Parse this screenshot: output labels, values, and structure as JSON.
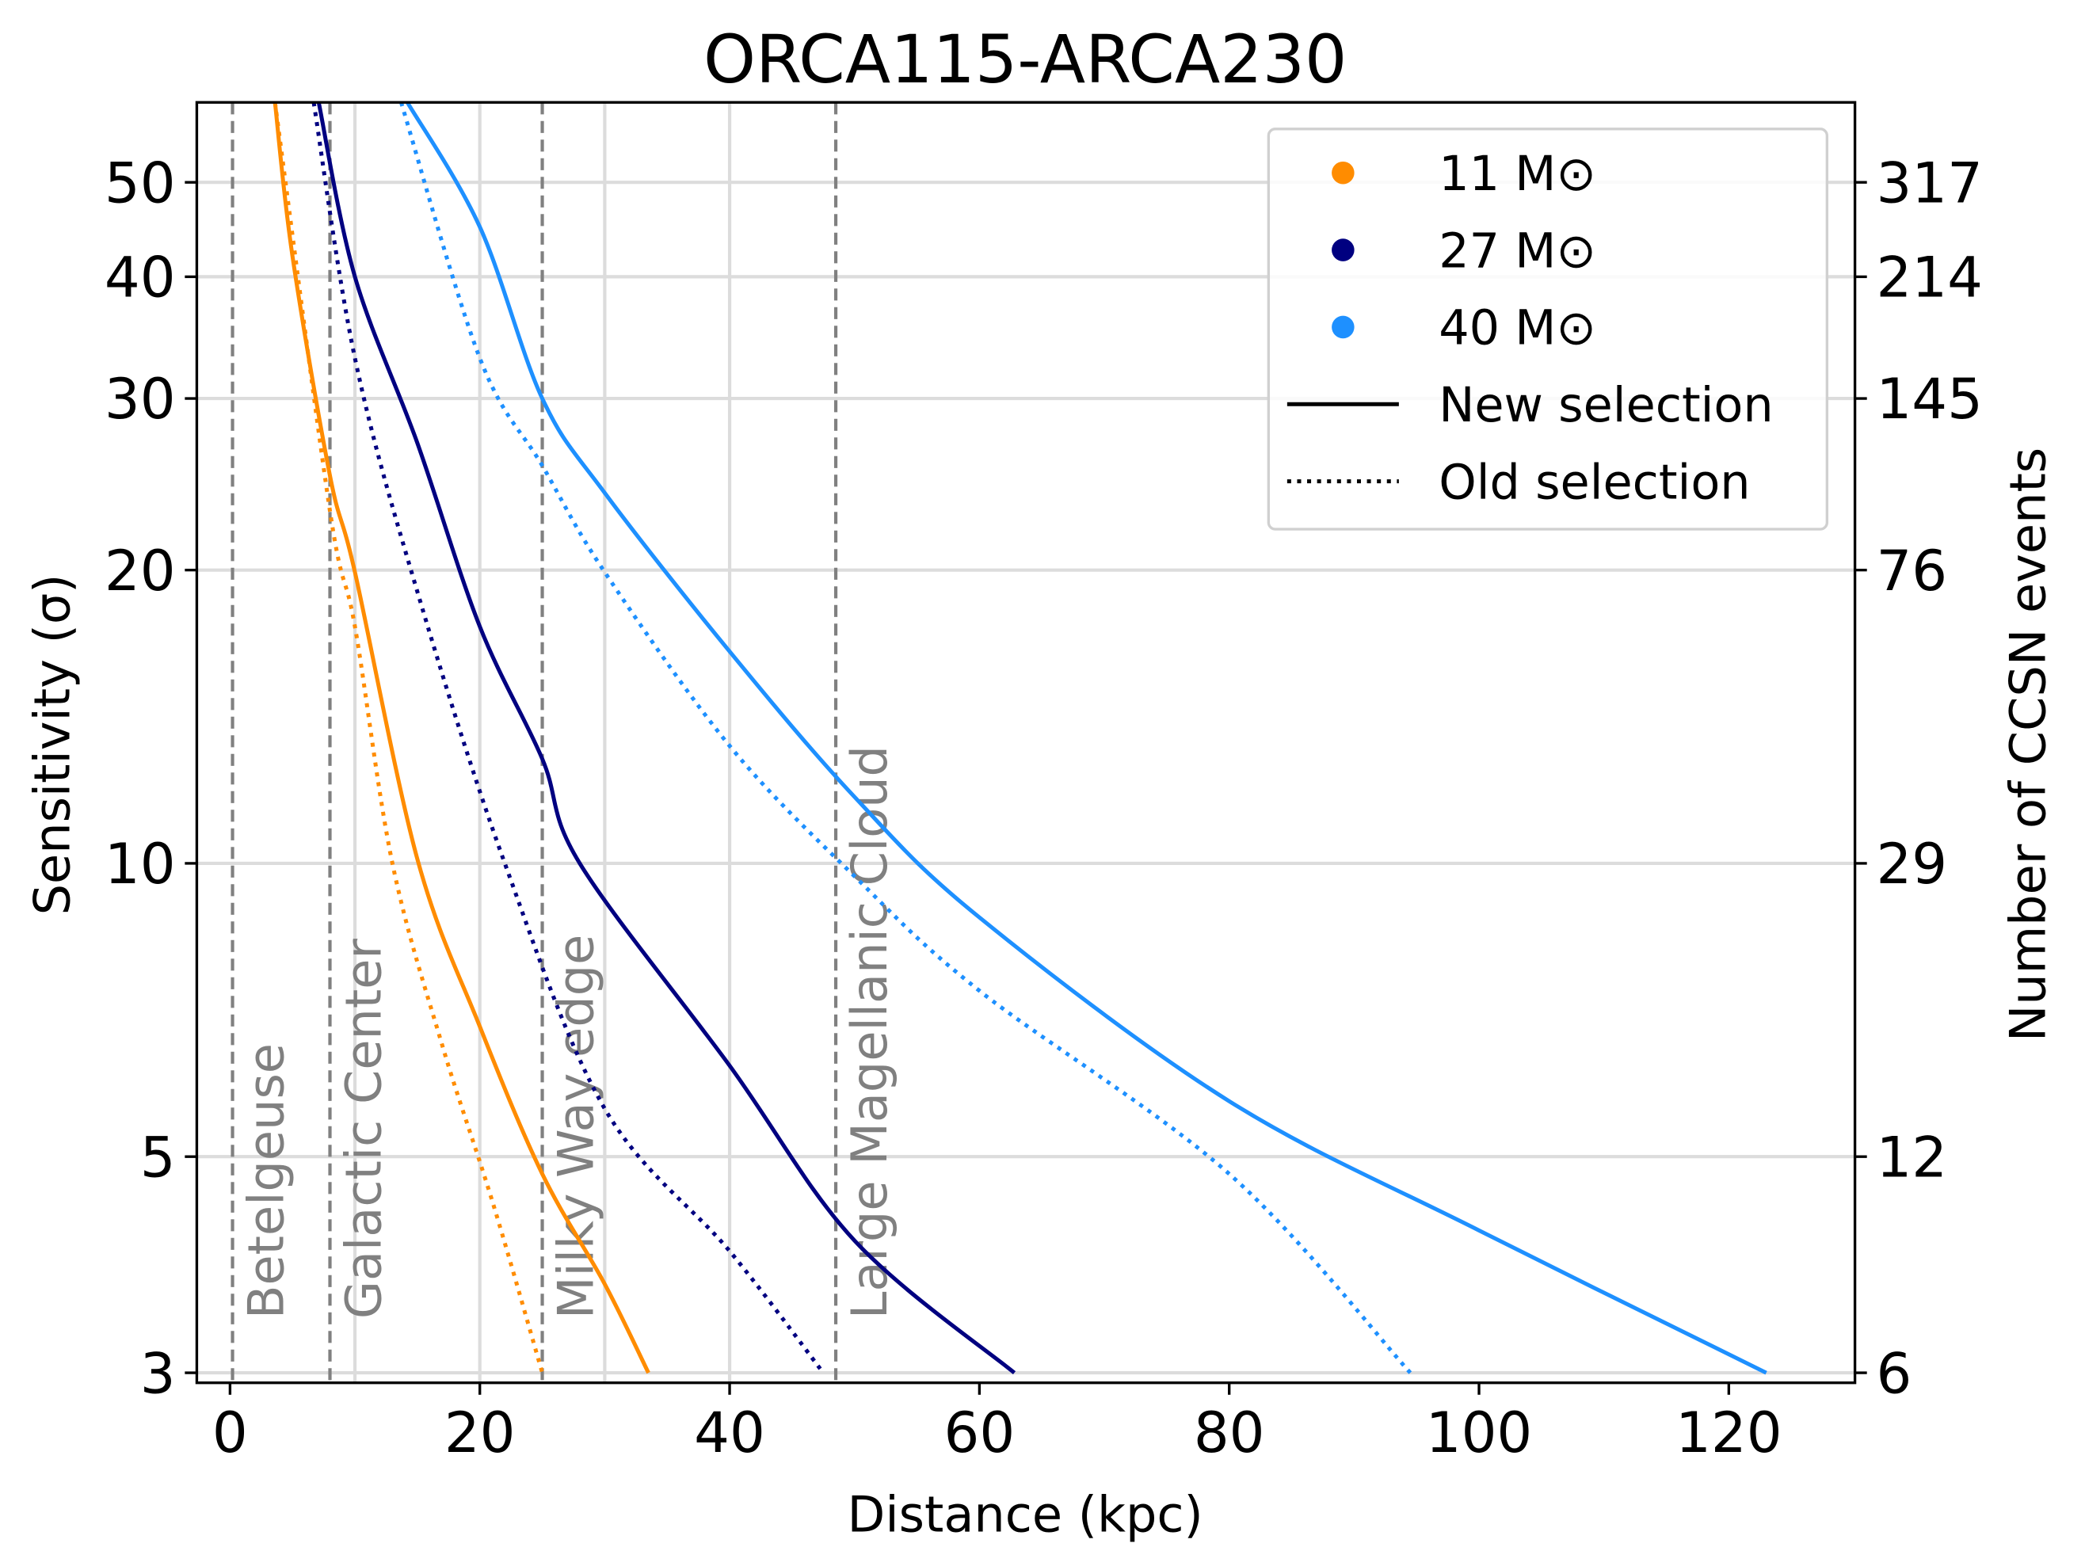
{
  "chart_data": {
    "type": "line",
    "title": "ORCA115-ARCA230",
    "xlabel": "Distance (kpc)",
    "ylabel": "Sensitivity (σ)",
    "y2label": "Number of CCSN events",
    "xlim": [
      -2.66,
      130.1
    ],
    "ylim": [
      2.93,
      60.4
    ],
    "yscale": "log",
    "xticks": [
      0,
      20,
      40,
      60,
      80,
      100,
      120
    ],
    "yticks": [
      3,
      5,
      10,
      20,
      30,
      40,
      50
    ],
    "y2ticks": [
      6,
      12,
      29,
      76,
      145,
      214,
      317
    ],
    "xgrid": [
      10,
      20,
      30,
      40
    ],
    "grid": true,
    "legend": "upper right",
    "line_styles": [
      {
        "name": "New selection",
        "dash": "solid"
      },
      {
        "name": "Old selection",
        "dash": "dotted"
      }
    ],
    "series": [
      {
        "name": "11 M⊙",
        "color": "#ff8c00",
        "curves": [
          {
            "x": [
              3.6,
              5,
              8,
              10,
              15,
              20,
              25,
              30,
              33.5
            ],
            "values": [
              60.4,
              42,
              25,
              19.9,
              10.1,
              6.8,
              4.8,
              3.7,
              3.0
            ]
          },
          {
            "x": [
              3.6,
              8,
              10,
              13,
              17,
              21,
              25
            ],
            "values": [
              60.4,
              23,
              17.5,
              10,
              6.5,
              4.5,
              3.0
            ]
          }
        ]
      },
      {
        "name": "27 M⊙",
        "color": "#000080",
        "curves": [
          {
            "x": [
              7.1,
              10,
              15,
              20,
              25,
              28,
              40,
              50,
              62.8
            ],
            "values": [
              60.4,
              40,
              27,
              17.5,
              12.8,
              10,
              6.2,
              4.1,
              3.0
            ]
          },
          {
            "x": [
              6.7,
              10,
              15,
              22,
              30,
              40,
              47.5
            ],
            "values": [
              60.4,
              33,
              19,
              10,
              5.6,
              4.0,
              3.0
            ]
          }
        ]
      },
      {
        "name": "40 M⊙",
        "color": "#1e90ff",
        "curves": [
          {
            "x": [
              14.2,
              20,
              25,
              30,
              40,
              50,
              60,
              80,
              100,
              123
            ],
            "values": [
              60.4,
              45,
              30,
              24,
              16.5,
              11.7,
              8.8,
              5.7,
              4.2,
              3.0
            ]
          },
          {
            "x": [
              13.7,
              20,
              25,
              30,
              40,
              50,
              60,
              80,
              94.5
            ],
            "values": [
              60.4,
              33,
              25.6,
              19.9,
              13.2,
              9.7,
              7.4,
              4.8,
              3.0
            ]
          }
        ]
      }
    ],
    "vlines": [
      {
        "x": 0.2,
        "label": "Betelgeuse"
      },
      {
        "x": 8,
        "label": "Galactic Center"
      },
      {
        "x": 25,
        "label": "Milky Way edge"
      },
      {
        "x": 48.5,
        "label": "Large Magellanic Cloud"
      }
    ]
  }
}
